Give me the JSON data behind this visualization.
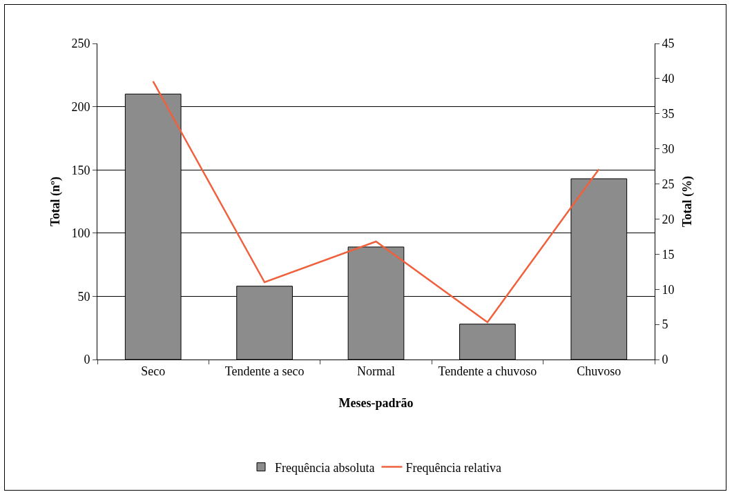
{
  "chart_data": {
    "type": "bar",
    "xlabel": "Meses-padrão",
    "ylabel": "Total (nº)",
    "y2label": "Total (%)",
    "categories": [
      "Seco",
      "Tendente a seco",
      "Normal",
      "Tendente a chuvoso",
      "Chuvoso"
    ],
    "series": [
      {
        "name": "Frequência absoluta",
        "color": "#8c8c8c",
        "values": [
          210,
          58,
          89,
          28,
          143
        ]
      },
      {
        "name": "Frequência relativa",
        "type": "line",
        "axis": "y2",
        "color": "#f0603c",
        "values": [
          39.6,
          11,
          16.8,
          5.3,
          27.1
        ]
      }
    ],
    "ylim": [
      0,
      250
    ],
    "yticks": [
      0,
      50,
      100,
      150,
      200,
      250
    ],
    "y2lim": [
      0,
      45
    ],
    "y2ticks": [
      0,
      5,
      10,
      15,
      20,
      25,
      30,
      35,
      40,
      45
    ],
    "grid": "y",
    "legend": "bottom",
    "marker": "none",
    "line_style": "solid"
  }
}
